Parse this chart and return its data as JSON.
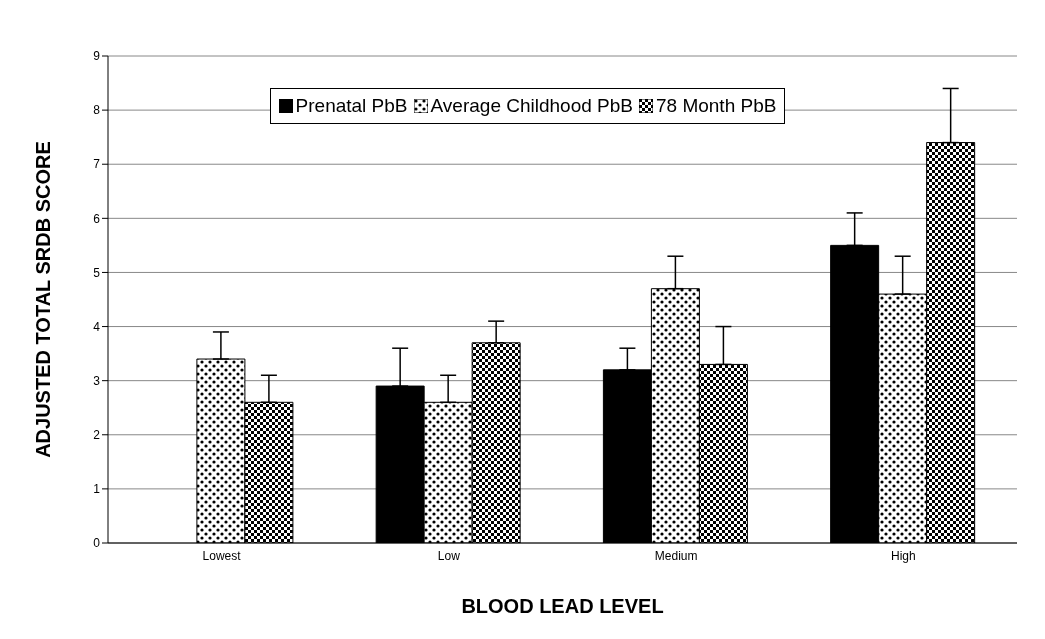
{
  "chart_data": {
    "type": "bar",
    "xlabel": "BLOOD LEAD LEVEL",
    "ylabel": "ADJUSTED TOTAL SRDB SCORE",
    "categories": [
      "Lowest",
      "Low",
      "Medium",
      "High"
    ],
    "series": [
      {
        "name": "Prenatal PbB",
        "color": "#000000",
        "values": [
          null,
          2.9,
          3.2,
          5.5
        ],
        "errors": [
          null,
          [
            2.9,
            3.6
          ],
          [
            3.2,
            3.6
          ],
          [
            5.5,
            6.1
          ]
        ]
      },
      {
        "name": "Average Childhood PbB",
        "color": "#000000",
        "values": [
          3.4,
          2.6,
          4.7,
          4.6
        ],
        "errors": [
          [
            3.4,
            3.9
          ],
          [
            2.6,
            3.1
          ],
          [
            4.7,
            5.3
          ],
          [
            4.6,
            5.3
          ]
        ]
      },
      {
        "name": "78 Month PbB",
        "color": "#000000",
        "values": [
          2.6,
          3.7,
          3.3,
          7.4
        ],
        "errors": [
          [
            2.6,
            3.1
          ],
          [
            3.7,
            4.1
          ],
          [
            3.3,
            4.0
          ],
          [
            7.4,
            8.4
          ]
        ]
      }
    ],
    "ylim": [
      0,
      9
    ],
    "yticks": [
      0,
      1,
      2,
      3,
      4,
      5,
      6,
      7,
      8,
      9
    ],
    "grid": "y",
    "legend": "top"
  }
}
